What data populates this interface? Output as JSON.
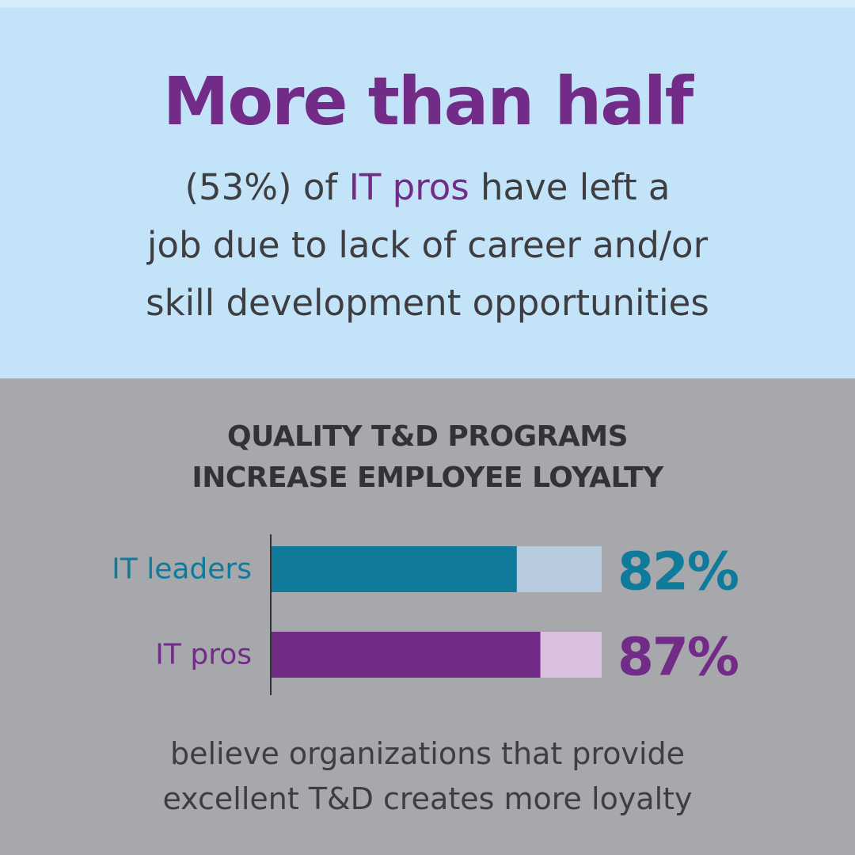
{
  "headline": "More than half",
  "subtitle": {
    "line1_a": "(53%) of ",
    "line1_highlight": "IT pros",
    "line1_b": " have left a",
    "line2": "job due to lack of career and/or",
    "line3": "skill development opportunities"
  },
  "section_title": {
    "line1": "QUALITY T&D PROGRAMS",
    "line2": "INCREASE EMPLOYEE LOYALTY"
  },
  "footer": {
    "line1": "believe organizations that provide",
    "line2": "excellent T&D creates more loyalty"
  },
  "colors": {
    "purple": "#722c87",
    "teal": "#107a9b",
    "teal_track": "#b8cbde",
    "purple_track": "#d9c0dc",
    "top_background": "#c3e4f8",
    "bottom_background": "#a7a8ac",
    "text_dark": "#3e3e42"
  },
  "chart_data": {
    "type": "bar",
    "orientation": "horizontal",
    "categories": [
      "IT leaders",
      "IT pros"
    ],
    "values": [
      82,
      87
    ],
    "value_labels": [
      "82%",
      "87%"
    ],
    "xlim": [
      0,
      100
    ],
    "bar_colors": [
      "#107a9b",
      "#722c87"
    ],
    "track_colors": [
      "#b8cbde",
      "#d9c0dc"
    ]
  }
}
